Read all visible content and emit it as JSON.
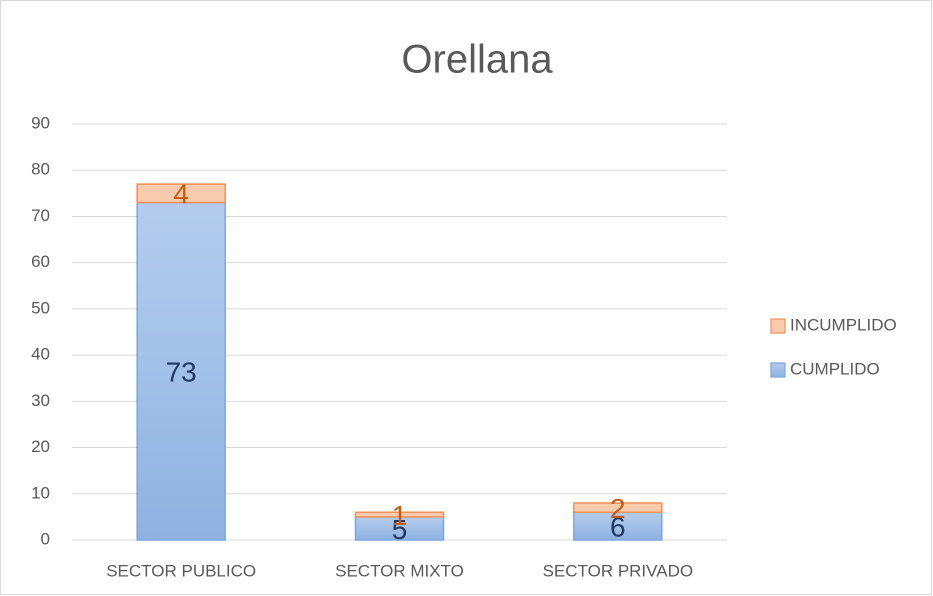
{
  "chart_data": {
    "type": "stacked-bar",
    "title": "Orellana",
    "categories": [
      "SECTOR PUBLICO",
      "SECTOR MIXTO",
      "SECTOR PRIVADO"
    ],
    "series": [
      {
        "name": "CUMPLIDO",
        "color": "#a9c4eb",
        "values": [
          73,
          5,
          6
        ]
      },
      {
        "name": "INCUMPLIDO",
        "color": "#f8cbad",
        "values": [
          4,
          1,
          2
        ]
      }
    ],
    "ylim": [
      0,
      90
    ],
    "yticks": [
      0,
      10,
      20,
      30,
      40,
      50,
      60,
      70,
      80,
      90
    ],
    "grid": true,
    "legend": "right"
  }
}
